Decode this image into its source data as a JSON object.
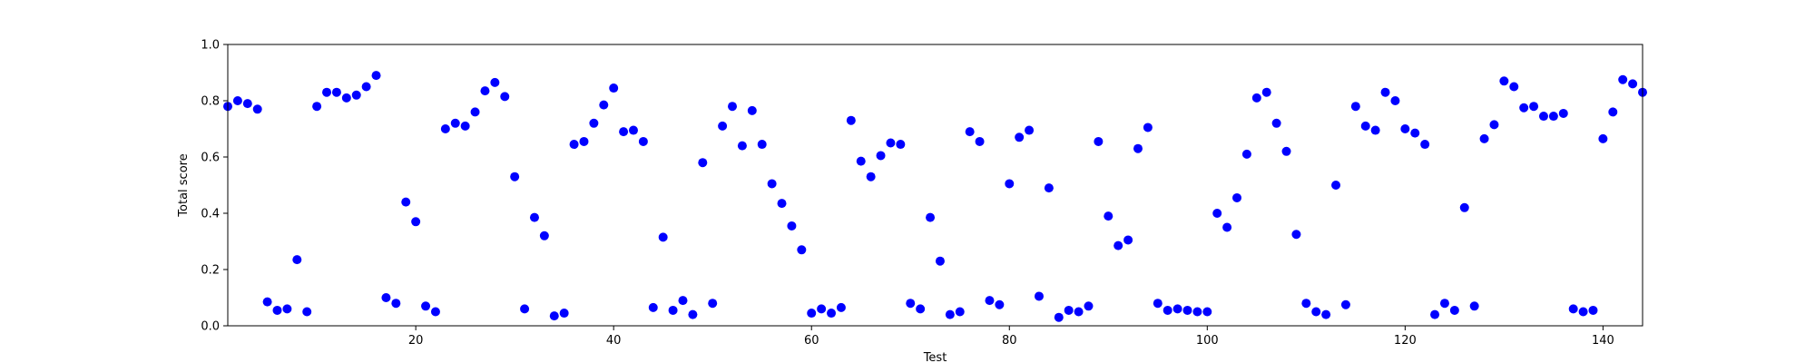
{
  "chart_data": {
    "type": "scatter",
    "xlabel": "Test",
    "ylabel": "Total score",
    "xlim": [
      1,
      144
    ],
    "ylim": [
      0.0,
      1.0
    ],
    "xticks": [
      20,
      40,
      60,
      80,
      100,
      120,
      140
    ],
    "xtick_labels": [
      "20",
      "40",
      "60",
      "80",
      "100",
      "120",
      "140"
    ],
    "yticks": [
      0.0,
      0.2,
      0.4,
      0.6,
      0.8,
      1.0
    ],
    "ytick_labels": [
      "0.0",
      "0.2",
      "0.4",
      "0.6",
      "0.8",
      "1.0"
    ],
    "grid": false,
    "marker_color": "#0000ff",
    "series": [
      {
        "x": [
          1,
          2,
          3,
          4,
          5,
          6,
          7,
          8,
          9,
          10,
          11,
          12,
          13,
          14,
          15,
          16,
          17,
          18,
          19,
          20,
          21,
          22,
          23,
          24,
          25,
          26,
          27,
          28,
          29,
          30,
          31,
          32,
          33,
          34,
          35,
          36,
          37,
          38,
          39,
          40,
          41,
          42,
          43,
          44,
          45,
          46,
          47,
          48,
          49,
          50,
          51,
          52,
          53,
          54,
          55,
          56,
          57,
          58,
          59,
          60,
          61,
          62,
          63,
          64,
          65,
          66,
          67,
          68,
          69,
          70,
          71,
          72,
          73,
          74,
          75,
          76,
          77,
          78,
          79,
          80,
          81,
          82,
          83,
          84,
          85,
          86,
          87,
          88,
          89,
          90,
          91,
          92,
          93,
          94,
          95,
          96,
          97,
          98,
          99,
          100,
          101,
          102,
          103,
          104,
          105,
          106,
          107,
          108,
          109,
          110,
          111,
          112,
          113,
          114,
          115,
          116,
          117,
          118,
          119,
          120,
          121,
          122,
          123,
          124,
          125,
          126,
          127,
          128,
          129,
          130,
          131,
          132,
          133,
          134,
          135,
          136,
          137,
          138,
          139,
          140,
          141,
          142,
          143,
          144
        ],
        "values": [
          0.78,
          0.8,
          0.79,
          0.77,
          0.085,
          0.055,
          0.06,
          0.235,
          0.05,
          0.78,
          0.83,
          0.83,
          0.81,
          0.82,
          0.85,
          0.89,
          0.1,
          0.08,
          0.44,
          0.37,
          0.07,
          0.05,
          0.7,
          0.72,
          0.71,
          0.76,
          0.835,
          0.865,
          0.815,
          0.53,
          0.06,
          0.385,
          0.32,
          0.035,
          0.045,
          0.645,
          0.655,
          0.72,
          0.785,
          0.845,
          0.69,
          0.695,
          0.655,
          0.065,
          0.315,
          0.055,
          0.09,
          0.04,
          0.58,
          0.08,
          0.71,
          0.78,
          0.64,
          0.765,
          0.645,
          0.505,
          0.435,
          0.355,
          0.27,
          0.045,
          0.06,
          0.045,
          0.065,
          0.73,
          0.585,
          0.53,
          0.605,
          0.65,
          0.645,
          0.08,
          0.06,
          0.385,
          0.23,
          0.04,
          0.05,
          0.69,
          0.655,
          0.09,
          0.075,
          0.505,
          0.67,
          0.695,
          0.105,
          0.49,
          0.03,
          0.055,
          0.05,
          0.07,
          0.655,
          0.39,
          0.285,
          0.305,
          0.63,
          0.705,
          0.08,
          0.055,
          0.06,
          0.055,
          0.05,
          0.05,
          0.4,
          0.35,
          0.455,
          0.61,
          0.81,
          0.83,
          0.72,
          0.62,
          0.325,
          0.08,
          0.05,
          0.04,
          0.5,
          0.075,
          0.78,
          0.71,
          0.695,
          0.83,
          0.8,
          0.7,
          0.685,
          0.645,
          0.04,
          0.08,
          0.055,
          0.42,
          0.07,
          0.665,
          0.715,
          0.87,
          0.85,
          0.775,
          0.78,
          0.745,
          0.745,
          0.755,
          0.06,
          0.05,
          0.055,
          0.665,
          0.76,
          0.875,
          0.86,
          0.83
        ]
      }
    ]
  }
}
